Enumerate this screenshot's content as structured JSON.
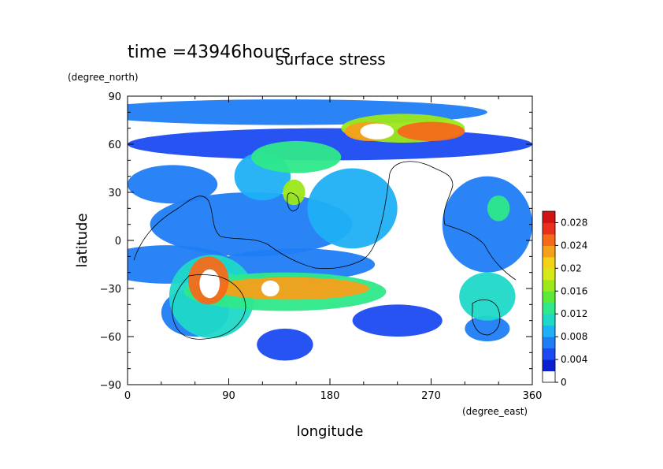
{
  "chart_data": {
    "type": "heatmap",
    "title": "surface stress",
    "time_label": "time =43946hours",
    "xlabel": "longitude",
    "ylabel": "latitude",
    "xunit": "(degree_east)",
    "yunit": "(degree_north)",
    "xlim": [
      0,
      360
    ],
    "ylim": [
      -90,
      90
    ],
    "xticks": [
      0,
      90,
      180,
      270,
      360
    ],
    "yticks": [
      -90,
      -60,
      -30,
      0,
      30,
      60,
      90
    ],
    "xtick_labels": [
      "0",
      "90",
      "180",
      "270",
      "360"
    ],
    "ytick_labels": [
      "−90",
      "−60",
      "−30",
      "0",
      "30",
      "60",
      "90"
    ],
    "colorbar": {
      "min": 0,
      "max": 0.03,
      "ticks": [
        0,
        0.004,
        0.008,
        0.012,
        0.016,
        0.02,
        0.024,
        0.028
      ],
      "tick_labels": [
        "0",
        "0.004",
        "0.008",
        "0.012",
        "0.016",
        "0.02",
        "0.024",
        "0.028"
      ],
      "colors": [
        "#ffffff",
        "#0a1fcf",
        "#1a4af0",
        "#1f7df5",
        "#1fb0f5",
        "#1fd8c8",
        "#2ee88a",
        "#5ee83a",
        "#9ce81a",
        "#d4e81a",
        "#f5d21a",
        "#f5a01a",
        "#f56a1a",
        "#e8301a",
        "#d01414"
      ]
    },
    "fields": [
      {
        "lon": 140,
        "lat": 80,
        "rlon": 180,
        "rlat": 8,
        "value": 0.005
      },
      {
        "lon": 180,
        "lat": 60,
        "rlon": 180,
        "rlat": 10,
        "value": 0.004
      },
      {
        "lon": 245,
        "lat": 70,
        "rlon": 55,
        "rlat": 9,
        "value": 0.016
      },
      {
        "lon": 270,
        "lat": 68,
        "rlon": 30,
        "rlat": 6,
        "value": 0.024
      },
      {
        "lon": 215,
        "lat": 68,
        "rlon": 22,
        "rlat": 6,
        "value": 0.022
      },
      {
        "lon": 150,
        "lat": 52,
        "rlon": 40,
        "rlat": 10,
        "value": 0.011
      },
      {
        "lon": 148,
        "lat": 30,
        "rlon": 10,
        "rlat": 8,
        "value": 0.016
      },
      {
        "lon": 120,
        "lat": 40,
        "rlon": 25,
        "rlat": 15,
        "value": 0.008
      },
      {
        "lon": 40,
        "lat": 35,
        "rlon": 40,
        "rlat": 12,
        "value": 0.005
      },
      {
        "lon": 110,
        "lat": 10,
        "rlon": 90,
        "rlat": 20,
        "value": 0.005
      },
      {
        "lon": 200,
        "lat": 20,
        "rlon": 40,
        "rlat": 25,
        "value": 0.007
      },
      {
        "lon": 320,
        "lat": 10,
        "rlon": 40,
        "rlat": 30,
        "value": 0.006
      },
      {
        "lon": 330,
        "lat": 20,
        "rlon": 10,
        "rlat": 8,
        "value": 0.012
      },
      {
        "lon": 35,
        "lat": -15,
        "rlon": 60,
        "rlat": 12,
        "value": 0.005
      },
      {
        "lon": 150,
        "lat": -15,
        "rlon": 70,
        "rlat": 10,
        "value": 0.005
      },
      {
        "lon": 140,
        "lat": -32,
        "rlon": 90,
        "rlat": 12,
        "value": 0.012
      },
      {
        "lon": 145,
        "lat": -30,
        "rlon": 70,
        "rlat": 7,
        "value": 0.022
      },
      {
        "lon": 75,
        "lat": -35,
        "rlon": 38,
        "rlat": 26,
        "value": 0.01
      },
      {
        "lon": 72,
        "lat": -25,
        "rlon": 18,
        "rlat": 15,
        "value": 0.024
      },
      {
        "lon": 60,
        "lat": -45,
        "rlon": 30,
        "rlat": 15,
        "value": 0.006
      },
      {
        "lon": 320,
        "lat": -35,
        "rlon": 25,
        "rlat": 15,
        "value": 0.01
      },
      {
        "lon": 320,
        "lat": -55,
        "rlon": 20,
        "rlat": 8,
        "value": 0.005
      },
      {
        "lon": 140,
        "lat": -65,
        "rlon": 25,
        "rlat": 10,
        "value": 0.004
      },
      {
        "lon": 240,
        "lat": -50,
        "rlon": 40,
        "rlat": 10,
        "value": 0.004
      }
    ],
    "white_spots": [
      {
        "lon": 222,
        "lat": 68,
        "rlon": 15,
        "rlat": 5
      },
      {
        "lon": 73,
        "lat": -27,
        "rlon": 9,
        "rlat": 9
      },
      {
        "lon": 127,
        "lat": -30,
        "rlon": 8,
        "rlat": 5
      }
    ]
  }
}
